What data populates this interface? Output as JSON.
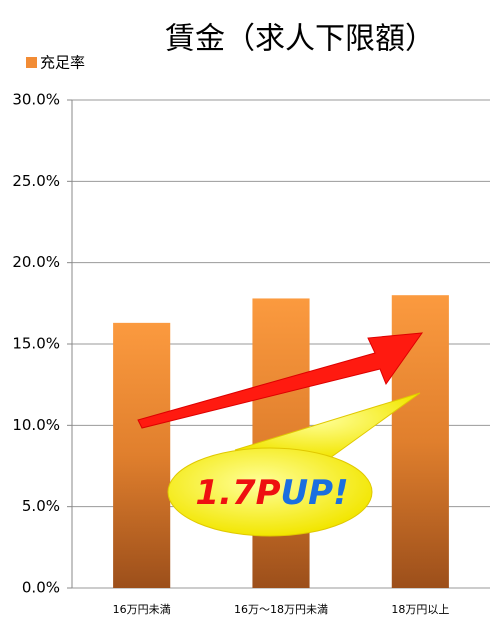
{
  "chart_data": {
    "type": "bar",
    "title": "賃金（求人下限額）",
    "legend": "充足率",
    "categories": [
      "16万円未満",
      "16万〜18万円未満",
      "18万円以上"
    ],
    "values": [
      16.3,
      17.8,
      18.0
    ],
    "color": "#f28c35",
    "ylim": [
      0,
      30
    ],
    "yticks": [
      {
        "value": 0,
        "label": "0.0%"
      },
      {
        "value": 5,
        "label": "5.0%"
      },
      {
        "value": 10,
        "label": "10.0%"
      },
      {
        "value": 15,
        "label": "15.0%"
      },
      {
        "value": 20,
        "label": "20.0%"
      },
      {
        "value": 25,
        "label": "25.0%"
      },
      {
        "value": 30,
        "label": "30.0%"
      }
    ],
    "grid": true,
    "annotation": [
      "1.7P",
      "UP!"
    ]
  }
}
